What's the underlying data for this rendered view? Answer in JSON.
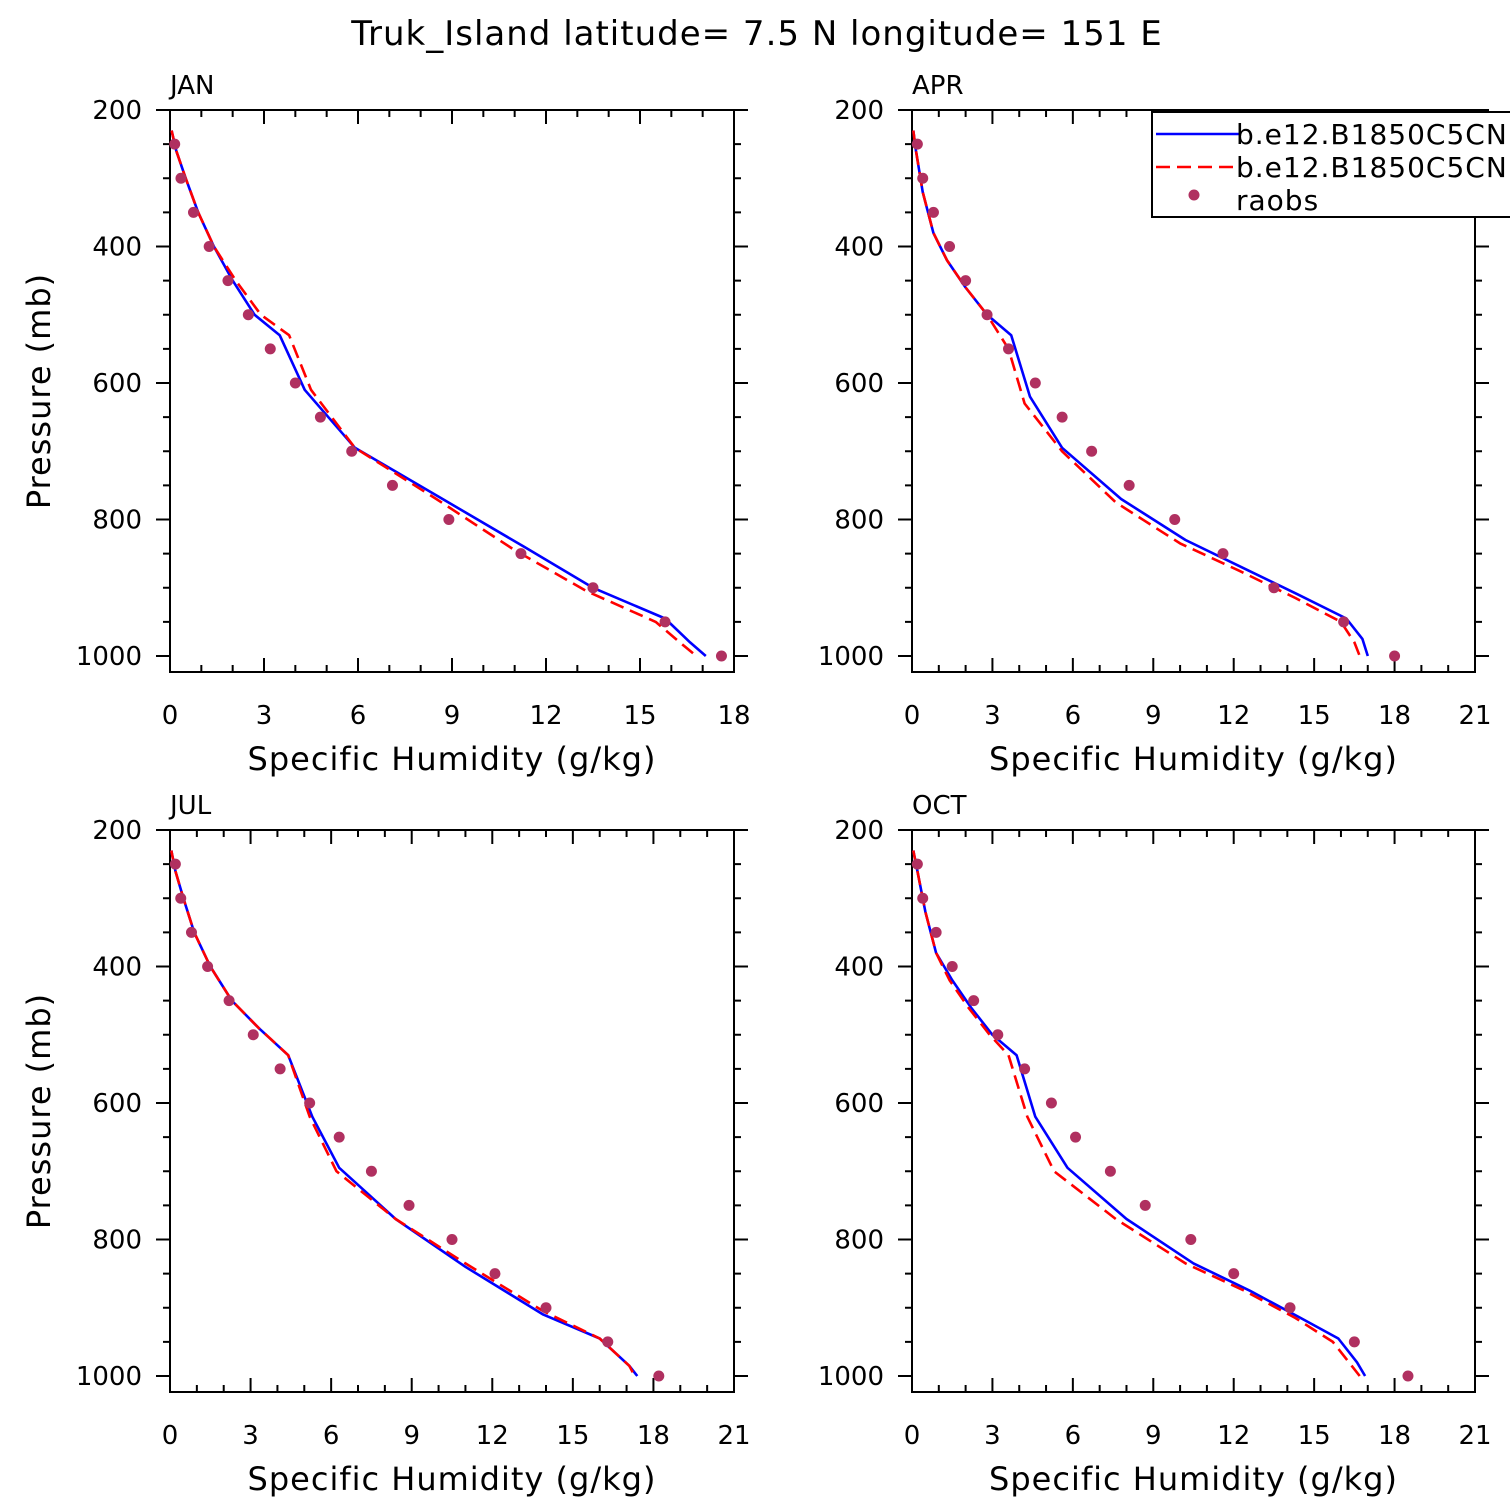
{
  "title": "Truk_Island  latitude= 7.5 N longitude= 151 E",
  "colors": {
    "series1": "#0000ff",
    "series2": "#ff0000",
    "raobs": "#b03060"
  },
  "legend": [
    "b.e12.B1850C5CN",
    "b.e12.B1850C5CN",
    "raobs"
  ],
  "chart_data": [
    {
      "type": "line",
      "title": "JAN",
      "xlabel": "Specific Humidity (g/kg)",
      "ylabel": "Pressure (mb)",
      "xlim": [
        0,
        18
      ],
      "ylim": [
        1000,
        200
      ],
      "xticks": [
        "0",
        "3",
        "6",
        "9",
        "12",
        "15",
        "18"
      ],
      "yticks": [
        "200",
        "400",
        "600",
        "800",
        "1000"
      ],
      "series": [
        {
          "name": "b.e12.B1850C5CN",
          "style": "solid",
          "x": [
            0.05,
            0.2,
            0.5,
            0.9,
            1.4,
            2.0,
            2.7,
            3.5,
            4.3,
            5.9,
            8.7,
            11.3,
            13.5,
            15.8,
            16.6,
            17.1
          ],
          "y": [
            230,
            260,
            300,
            350,
            400,
            450,
            500,
            530,
            610,
            695,
            770,
            840,
            900,
            945,
            980,
            1000
          ]
        },
        {
          "name": "b.e12.B1850C5CN",
          "style": "dashed",
          "x": [
            0.05,
            0.2,
            0.5,
            0.9,
            1.4,
            2.1,
            2.9,
            3.8,
            4.5,
            5.9,
            8.5,
            11.0,
            13.3,
            15.5,
            16.4,
            16.8
          ],
          "y": [
            230,
            260,
            300,
            350,
            400,
            450,
            500,
            530,
            610,
            695,
            770,
            845,
            905,
            950,
            985,
            1000
          ]
        },
        {
          "name": "raobs",
          "style": "markers",
          "x": [
            0.15,
            0.35,
            0.75,
            1.25,
            1.85,
            2.5,
            3.2,
            4.0,
            4.8,
            5.8,
            7.1,
            8.9,
            11.2,
            13.5,
            15.8,
            17.6
          ],
          "y": [
            250,
            300,
            350,
            400,
            450,
            500,
            550,
            600,
            650,
            700,
            750,
            800,
            850,
            900,
            950,
            1000
          ]
        }
      ]
    },
    {
      "type": "line",
      "title": "APR",
      "xlabel": "Specific Humidity (g/kg)",
      "ylabel": "",
      "xlim": [
        0,
        21
      ],
      "ylim": [
        1000,
        200
      ],
      "xticks": [
        "0",
        "3",
        "6",
        "9",
        "12",
        "15",
        "18",
        "21"
      ],
      "yticks": [
        "200",
        "400",
        "600",
        "800",
        "1000"
      ],
      "series": [
        {
          "name": "b.e12.B1850C5CN",
          "style": "solid",
          "x": [
            0.05,
            0.15,
            0.4,
            0.8,
            1.3,
            2.0,
            2.8,
            3.7,
            4.4,
            5.6,
            7.8,
            10.2,
            12.3,
            14.4,
            16.2,
            16.8,
            17.0
          ],
          "y": [
            230,
            260,
            320,
            380,
            420,
            460,
            500,
            530,
            620,
            695,
            770,
            830,
            870,
            910,
            945,
            975,
            1000
          ]
        },
        {
          "name": "b.e12.B1850C5CN",
          "style": "dashed",
          "x": [
            0.05,
            0.15,
            0.4,
            0.8,
            1.3,
            2.0,
            2.8,
            3.6,
            4.2,
            5.6,
            7.6,
            10.0,
            12.2,
            14.3,
            16.0,
            16.5,
            16.7
          ],
          "y": [
            230,
            260,
            320,
            380,
            420,
            460,
            500,
            550,
            630,
            700,
            775,
            835,
            875,
            915,
            950,
            980,
            1000
          ]
        },
        {
          "name": "raobs",
          "style": "markers",
          "x": [
            0.2,
            0.4,
            0.8,
            1.4,
            2.0,
            2.8,
            3.6,
            4.6,
            5.6,
            6.7,
            8.1,
            9.8,
            11.6,
            13.5,
            16.1,
            18.0
          ],
          "y": [
            250,
            300,
            350,
            400,
            450,
            500,
            550,
            600,
            650,
            700,
            750,
            800,
            850,
            900,
            950,
            1000
          ]
        }
      ]
    },
    {
      "type": "line",
      "title": "JUL",
      "xlabel": "Specific Humidity (g/kg)",
      "ylabel": "Pressure (mb)",
      "xlim": [
        0,
        21
      ],
      "ylim": [
        1000,
        200
      ],
      "xticks": [
        "0",
        "3",
        "6",
        "9",
        "12",
        "15",
        "18",
        "21"
      ],
      "yticks": [
        "200",
        "400",
        "600",
        "800",
        "1000"
      ],
      "series": [
        {
          "name": "b.e12.B1850C5CN",
          "style": "solid",
          "x": [
            0.05,
            0.2,
            0.5,
            0.9,
            1.5,
            2.3,
            3.3,
            4.4,
            5.3,
            6.3,
            8.4,
            11.0,
            13.9,
            16.0,
            17.1,
            17.4
          ],
          "y": [
            230,
            260,
            300,
            350,
            400,
            450,
            490,
            530,
            620,
            695,
            770,
            840,
            910,
            945,
            985,
            1000
          ]
        },
        {
          "name": "b.e12.B1850C5CN",
          "style": "dashed",
          "x": [
            0.05,
            0.2,
            0.5,
            0.9,
            1.5,
            2.3,
            3.3,
            4.4,
            5.2,
            6.2,
            8.4,
            11.0,
            13.9,
            16.0,
            17.1,
            17.3
          ],
          "y": [
            230,
            260,
            300,
            350,
            400,
            450,
            490,
            530,
            620,
            700,
            770,
            835,
            905,
            945,
            985,
            1000
          ]
        },
        {
          "name": "raobs",
          "style": "markers",
          "x": [
            0.2,
            0.4,
            0.8,
            1.4,
            2.2,
            3.1,
            4.1,
            5.2,
            6.3,
            7.5,
            8.9,
            10.5,
            12.1,
            14.0,
            16.3,
            18.2
          ],
          "y": [
            250,
            300,
            350,
            400,
            450,
            500,
            550,
            600,
            650,
            700,
            750,
            800,
            850,
            900,
            950,
            1000
          ]
        }
      ]
    },
    {
      "type": "line",
      "title": "OCT",
      "xlabel": "Specific Humidity (g/kg)",
      "ylabel": "",
      "xlim": [
        0,
        21
      ],
      "ylim": [
        1000,
        200
      ],
      "xticks": [
        "0",
        "3",
        "6",
        "9",
        "12",
        "15",
        "18",
        "21"
      ],
      "yticks": [
        "200",
        "400",
        "600",
        "800",
        "1000"
      ],
      "series": [
        {
          "name": "b.e12.B1850C5CN",
          "style": "solid",
          "x": [
            0.05,
            0.2,
            0.5,
            0.9,
            1.5,
            2.2,
            3.0,
            3.9,
            4.6,
            5.8,
            8.0,
            10.5,
            12.6,
            14.5,
            15.9,
            16.6,
            16.9
          ],
          "y": [
            230,
            260,
            320,
            380,
            420,
            460,
            500,
            530,
            620,
            695,
            770,
            835,
            875,
            915,
            945,
            980,
            1000
          ]
        },
        {
          "name": "b.e12.B1850C5CN",
          "style": "dashed",
          "x": [
            0.05,
            0.2,
            0.5,
            0.9,
            1.4,
            2.1,
            2.9,
            3.6,
            4.3,
            5.3,
            7.6,
            10.2,
            12.4,
            14.3,
            15.7,
            16.4,
            16.7
          ],
          "y": [
            230,
            260,
            320,
            380,
            420,
            460,
            500,
            530,
            620,
            700,
            770,
            835,
            875,
            915,
            950,
            985,
            1000
          ]
        },
        {
          "name": "raobs",
          "style": "markers",
          "x": [
            0.2,
            0.4,
            0.9,
            1.5,
            2.3,
            3.2,
            4.2,
            5.2,
            6.1,
            7.4,
            8.7,
            10.4,
            12.0,
            14.1,
            16.5,
            18.5
          ],
          "y": [
            250,
            300,
            350,
            400,
            450,
            500,
            550,
            600,
            650,
            700,
            750,
            800,
            850,
            900,
            950,
            1000
          ]
        }
      ]
    }
  ]
}
